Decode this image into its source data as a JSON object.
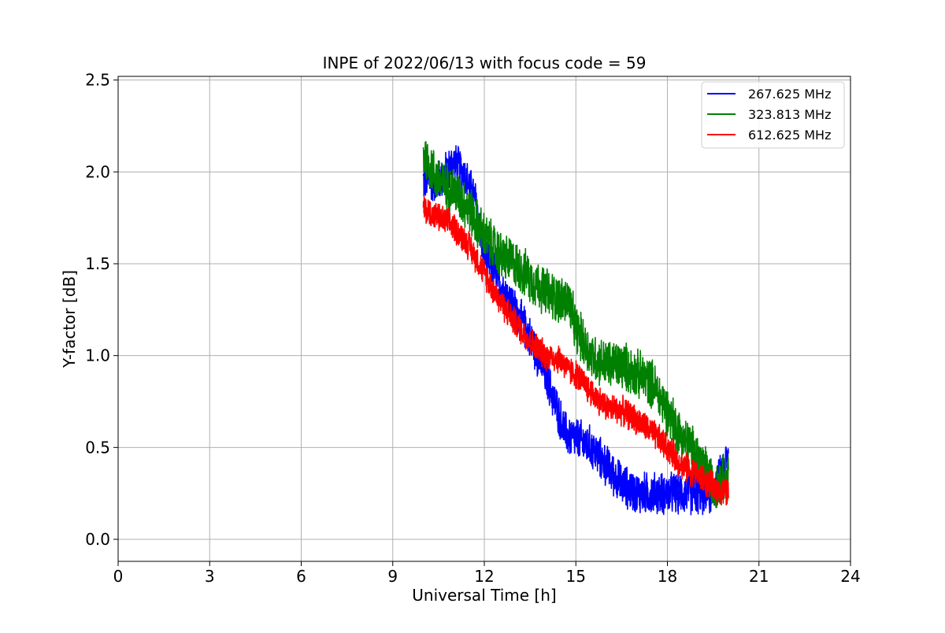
{
  "chart_data": {
    "type": "line",
    "title": "INPE of 2022/06/13 with focus code = 59",
    "xlabel": "Universal Time [h]",
    "ylabel": "Y-factor [dB]",
    "xlim": [
      0,
      24
    ],
    "ylim": [
      -0.12,
      2.52
    ],
    "xticks": [
      0,
      3,
      6,
      9,
      12,
      15,
      18,
      21,
      24
    ],
    "xtick_labels": [
      "0",
      "3",
      "6",
      "9",
      "12",
      "15",
      "18",
      "21",
      "24"
    ],
    "yticks": [
      0.0,
      0.5,
      1.0,
      1.5,
      2.0,
      2.5
    ],
    "ytick_labels": [
      "0.0",
      "0.5",
      "1.0",
      "1.5",
      "2.0",
      "2.5"
    ],
    "grid": true,
    "legend_position": "top-right",
    "series": [
      {
        "name": "267.625 MHz",
        "color": "#0000ff",
        "noise": 0.13,
        "x": [
          10.0,
          10.5,
          11.0,
          11.3,
          11.7,
          12.0,
          12.5,
          13.0,
          13.5,
          14.0,
          14.3,
          14.6,
          14.75,
          15.0,
          15.5,
          16.0,
          16.5,
          17.0,
          17.5,
          18.0,
          18.5,
          19.0,
          19.5,
          20.0
        ],
        "y": [
          1.95,
          1.95,
          2.05,
          2.0,
          1.85,
          1.55,
          1.4,
          1.25,
          1.1,
          0.9,
          0.75,
          0.6,
          0.56,
          0.55,
          0.5,
          0.4,
          0.3,
          0.25,
          0.25,
          0.25,
          0.25,
          0.25,
          0.25,
          0.45
        ]
      },
      {
        "name": "323.813 MHz",
        "color": "#008000",
        "noise": 0.15,
        "x": [
          10.0,
          10.5,
          11.0,
          11.5,
          12.0,
          12.5,
          13.0,
          13.5,
          14.0,
          14.5,
          14.75,
          15.0,
          15.5,
          16.0,
          16.5,
          17.0,
          17.5,
          18.0,
          18.5,
          19.0,
          19.5,
          20.0
        ],
        "y": [
          2.1,
          1.95,
          1.9,
          1.8,
          1.65,
          1.55,
          1.5,
          1.42,
          1.35,
          1.3,
          1.3,
          1.15,
          1.0,
          0.95,
          0.95,
          0.9,
          0.85,
          0.7,
          0.55,
          0.45,
          0.3,
          0.35
        ]
      },
      {
        "name": "612.625 MHz",
        "color": "#ff0000",
        "noise": 0.09,
        "x": [
          10.0,
          10.5,
          11.0,
          11.5,
          12.0,
          12.5,
          13.0,
          13.5,
          14.0,
          14.5,
          14.75,
          15.0,
          15.5,
          16.0,
          16.5,
          17.0,
          17.5,
          18.0,
          18.5,
          19.0,
          19.5,
          20.0
        ],
        "y": [
          1.8,
          1.75,
          1.7,
          1.6,
          1.45,
          1.3,
          1.18,
          1.08,
          1.0,
          0.98,
          0.92,
          0.9,
          0.8,
          0.72,
          0.7,
          0.65,
          0.58,
          0.5,
          0.4,
          0.35,
          0.28,
          0.25
        ]
      }
    ]
  }
}
